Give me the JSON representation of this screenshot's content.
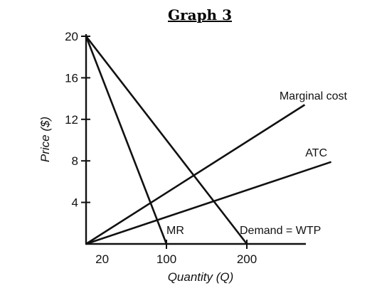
{
  "chart_data": {
    "type": "line",
    "title": "Graph 3",
    "xlabel": "Quantity (Q)",
    "ylabel": "Price ($)",
    "xlim": [
      0,
      280
    ],
    "ylim": [
      0,
      21
    ],
    "x_ticks": [
      {
        "value": 20,
        "label": "20"
      },
      {
        "value": 100,
        "label": "100"
      },
      {
        "value": 200,
        "label": "200"
      }
    ],
    "y_ticks": [
      {
        "value": 4,
        "label": "4"
      },
      {
        "value": 8,
        "label": "8"
      },
      {
        "value": 12,
        "label": "12"
      },
      {
        "value": 16,
        "label": "16"
      },
      {
        "value": 20,
        "label": "20"
      }
    ],
    "series": [
      {
        "name": "MR",
        "points": [
          [
            0,
            20
          ],
          [
            100,
            0
          ]
        ]
      },
      {
        "name": "Demand = WTP",
        "points": [
          [
            0,
            20
          ],
          [
            200,
            0
          ]
        ]
      },
      {
        "name": "Marginal cost",
        "points": [
          [
            0,
            0
          ],
          [
            272,
            13.4
          ]
        ]
      },
      {
        "name": "ATC",
        "points": [
          [
            0,
            0
          ],
          [
            305,
            7.9
          ]
        ]
      }
    ],
    "grid": false,
    "legend": "none"
  }
}
